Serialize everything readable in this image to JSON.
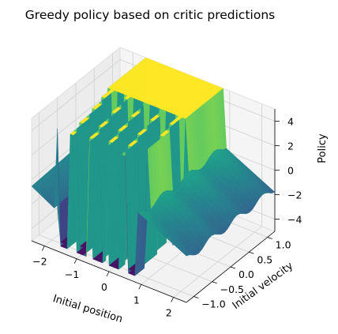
{
  "chart_data": {
    "type": "surface3d",
    "title": "Greedy policy based on critic predictions",
    "xlabel": "Initial position",
    "ylabel": "Initial velocity",
    "zlabel": "Policy",
    "colormap": "viridis",
    "xlim": [
      -2.4,
      2.4
    ],
    "ylim": [
      -1.2,
      1.2
    ],
    "zlim": [
      -5,
      5
    ],
    "x_ticks": [
      -2,
      -1,
      0,
      1,
      2
    ],
    "x_tick_labels": [
      "−2",
      "−1",
      "0",
      "1",
      "2"
    ],
    "y_ticks": [
      -1.0,
      -0.5,
      0.0,
      0.5,
      1.0
    ],
    "y_tick_labels": [
      "−1.0",
      "−0.5",
      "0.0",
      "0.5",
      "1.0"
    ],
    "z_ticks": [
      -4,
      -2,
      0,
      2,
      4
    ],
    "z_tick_labels": [
      "−4",
      "−2",
      "0",
      "2",
      "4"
    ],
    "surface": {
      "x_range": [
        -2.4,
        2.4
      ],
      "y_range": [
        -1.2,
        1.2
      ],
      "description_levels": {
        "high_plateau": 5,
        "low_plateau": -4.5,
        "edge_ramp_min": 0.5,
        "edge_ramp_max": -1.5
      }
    }
  }
}
